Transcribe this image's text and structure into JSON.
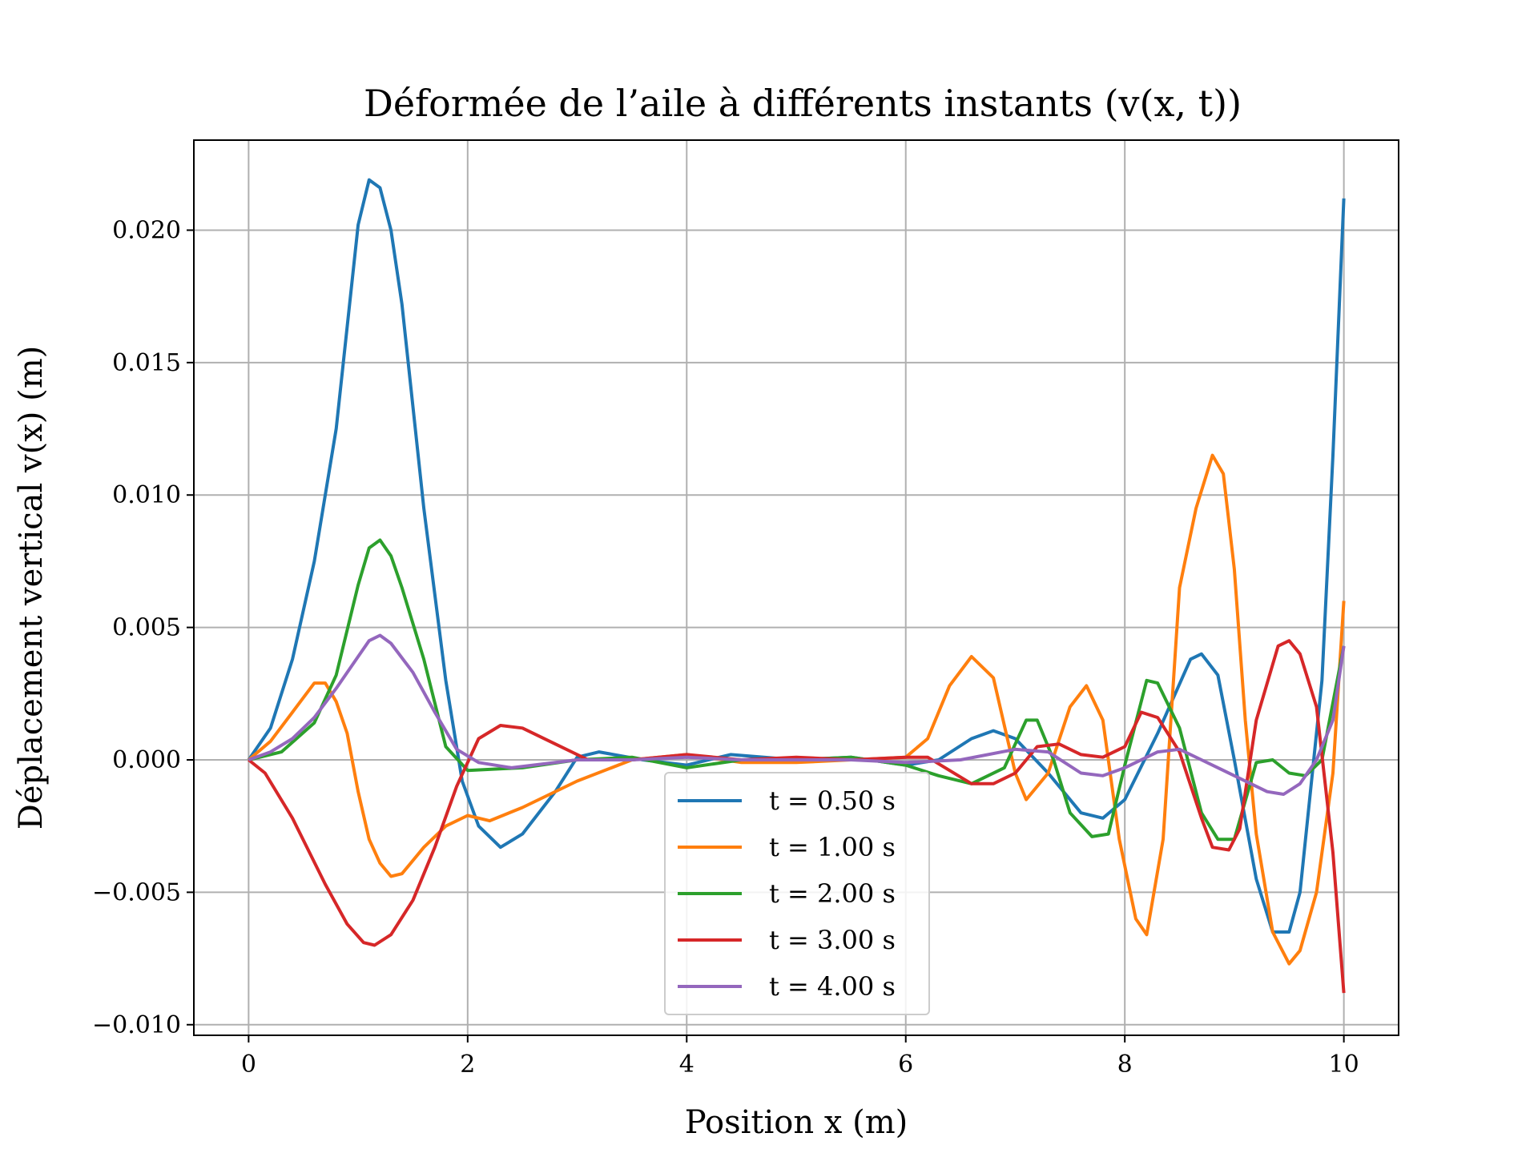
{
  "chart_data": {
    "type": "line",
    "title": "Déformée de l’aile à différents instants (v(x, t))",
    "xlabel": "Position x (m)",
    "ylabel": "Déplacement vertical v(x) (m)",
    "xlim": [
      -0.5,
      10.5
    ],
    "ylim": [
      -0.0104,
      0.0234
    ],
    "xticks": [
      0,
      2,
      4,
      6,
      8,
      10
    ],
    "xtick_labels": [
      "0",
      "2",
      "4",
      "6",
      "8",
      "10"
    ],
    "yticks": [
      -0.01,
      -0.005,
      0.0,
      0.005,
      0.01,
      0.015,
      0.02
    ],
    "ytick_labels": [
      "−0.010",
      "−0.005",
      "0.000",
      "0.005",
      "0.010",
      "0.015",
      "0.020"
    ],
    "grid": true,
    "legend_position": "lower-center",
    "colors": [
      "#1f77b4",
      "#ff7f0e",
      "#2ca02c",
      "#d62728",
      "#9467bd"
    ],
    "series": [
      {
        "name": "t = 0.50 s",
        "points": [
          [
            0,
            0
          ],
          [
            0.2,
            0.0012
          ],
          [
            0.4,
            0.0038
          ],
          [
            0.6,
            0.0075
          ],
          [
            0.8,
            0.0125
          ],
          [
            1.0,
            0.0202
          ],
          [
            1.1,
            0.0219
          ],
          [
            1.2,
            0.0216
          ],
          [
            1.3,
            0.02
          ],
          [
            1.4,
            0.0172
          ],
          [
            1.6,
            0.0095
          ],
          [
            1.8,
            0.003
          ],
          [
            1.95,
            -0.0008
          ],
          [
            2.1,
            -0.0025
          ],
          [
            2.3,
            -0.0033
          ],
          [
            2.5,
            -0.0028
          ],
          [
            2.8,
            -0.0012
          ],
          [
            3.0,
            0.0001
          ],
          [
            3.2,
            0.0003
          ],
          [
            3.6,
            0.0
          ],
          [
            4.0,
            -0.0002
          ],
          [
            4.4,
            0.0002
          ],
          [
            5.0,
            0.0
          ],
          [
            5.5,
            0.0001
          ],
          [
            6.0,
            -0.0002
          ],
          [
            6.3,
            0.0
          ],
          [
            6.6,
            0.0008
          ],
          [
            6.8,
            0.0011
          ],
          [
            7.0,
            0.0008
          ],
          [
            7.3,
            -0.0005
          ],
          [
            7.6,
            -0.002
          ],
          [
            7.8,
            -0.0022
          ],
          [
            8.0,
            -0.0015
          ],
          [
            8.3,
            0.001
          ],
          [
            8.6,
            0.0038
          ],
          [
            8.7,
            0.004
          ],
          [
            8.85,
            0.0032
          ],
          [
            9.0,
            0.0
          ],
          [
            9.2,
            -0.0045
          ],
          [
            9.35,
            -0.0065
          ],
          [
            9.5,
            -0.0065
          ],
          [
            9.6,
            -0.005
          ],
          [
            9.8,
            0.003
          ],
          [
            9.9,
            0.0115
          ],
          [
            10.0,
            0.0212
          ]
        ]
      },
      {
        "name": "t = 1.00 s",
        "points": [
          [
            0,
            0
          ],
          [
            0.2,
            0.0007
          ],
          [
            0.4,
            0.0018
          ],
          [
            0.6,
            0.0029
          ],
          [
            0.7,
            0.0029
          ],
          [
            0.8,
            0.0022
          ],
          [
            0.9,
            0.001
          ],
          [
            1.0,
            -0.0012
          ],
          [
            1.1,
            -0.003
          ],
          [
            1.2,
            -0.0039
          ],
          [
            1.3,
            -0.0044
          ],
          [
            1.4,
            -0.0043
          ],
          [
            1.6,
            -0.0033
          ],
          [
            1.8,
            -0.0025
          ],
          [
            2.0,
            -0.0021
          ],
          [
            2.2,
            -0.0023
          ],
          [
            2.5,
            -0.0018
          ],
          [
            3.0,
            -0.0008
          ],
          [
            3.5,
            0.0
          ],
          [
            4.0,
            0.0002
          ],
          [
            4.5,
            -0.0001
          ],
          [
            5.0,
            -0.0001
          ],
          [
            5.5,
            0.0
          ],
          [
            6.0,
            0.0001
          ],
          [
            6.2,
            0.0008
          ],
          [
            6.4,
            0.0028
          ],
          [
            6.6,
            0.0039
          ],
          [
            6.8,
            0.0031
          ],
          [
            7.0,
            -0.0005
          ],
          [
            7.1,
            -0.0015
          ],
          [
            7.3,
            -0.0005
          ],
          [
            7.5,
            0.002
          ],
          [
            7.65,
            0.0028
          ],
          [
            7.8,
            0.0015
          ],
          [
            7.95,
            -0.003
          ],
          [
            8.1,
            -0.006
          ],
          [
            8.2,
            -0.0066
          ],
          [
            8.35,
            -0.003
          ],
          [
            8.5,
            0.0065
          ],
          [
            8.65,
            0.0095
          ],
          [
            8.8,
            0.0115
          ],
          [
            8.9,
            0.0108
          ],
          [
            9.0,
            0.0072
          ],
          [
            9.1,
            0.0015
          ],
          [
            9.2,
            -0.0028
          ],
          [
            9.35,
            -0.0065
          ],
          [
            9.5,
            -0.0077
          ],
          [
            9.6,
            -0.0072
          ],
          [
            9.75,
            -0.005
          ],
          [
            9.9,
            -0.0005
          ],
          [
            10.0,
            0.006
          ]
        ]
      },
      {
        "name": "t = 2.00 s",
        "points": [
          [
            0,
            0
          ],
          [
            0.3,
            0.0003
          ],
          [
            0.6,
            0.0014
          ],
          [
            0.8,
            0.0032
          ],
          [
            1.0,
            0.0066
          ],
          [
            1.1,
            0.008
          ],
          [
            1.2,
            0.0083
          ],
          [
            1.3,
            0.0077
          ],
          [
            1.4,
            0.0065
          ],
          [
            1.6,
            0.0038
          ],
          [
            1.8,
            0.0005
          ],
          [
            2.0,
            -0.0004
          ],
          [
            2.5,
            -0.0003
          ],
          [
            3.0,
            0.0
          ],
          [
            3.5,
            0.0001
          ],
          [
            4.0,
            -0.0003
          ],
          [
            4.5,
            0.0
          ],
          [
            5.0,
            0.0
          ],
          [
            5.5,
            0.0001
          ],
          [
            6.0,
            -0.0002
          ],
          [
            6.3,
            -0.0006
          ],
          [
            6.6,
            -0.0009
          ],
          [
            6.9,
            -0.0003
          ],
          [
            7.1,
            0.0015
          ],
          [
            7.2,
            0.0015
          ],
          [
            7.35,
            0.0
          ],
          [
            7.5,
            -0.002
          ],
          [
            7.7,
            -0.0029
          ],
          [
            7.85,
            -0.0028
          ],
          [
            8.0,
            -0.0002
          ],
          [
            8.2,
            0.003
          ],
          [
            8.3,
            0.0029
          ],
          [
            8.5,
            0.0012
          ],
          [
            8.7,
            -0.002
          ],
          [
            8.85,
            -0.003
          ],
          [
            9.0,
            -0.003
          ],
          [
            9.2,
            -0.0001
          ],
          [
            9.35,
            0.0
          ],
          [
            9.5,
            -0.0005
          ],
          [
            9.65,
            -0.0006
          ],
          [
            9.8,
            0.0
          ],
          [
            10.0,
            0.0043
          ]
        ]
      },
      {
        "name": "t = 3.00 s",
        "points": [
          [
            0,
            0
          ],
          [
            0.15,
            -0.0005
          ],
          [
            0.4,
            -0.0022
          ],
          [
            0.7,
            -0.0047
          ],
          [
            0.9,
            -0.0062
          ],
          [
            1.05,
            -0.0069
          ],
          [
            1.15,
            -0.007
          ],
          [
            1.3,
            -0.0066
          ],
          [
            1.5,
            -0.0053
          ],
          [
            1.7,
            -0.0033
          ],
          [
            1.9,
            -0.001
          ],
          [
            2.1,
            0.0008
          ],
          [
            2.3,
            0.0013
          ],
          [
            2.5,
            0.0012
          ],
          [
            2.8,
            0.0006
          ],
          [
            3.1,
            0.0
          ],
          [
            3.5,
            0.0
          ],
          [
            4.0,
            0.0002
          ],
          [
            4.5,
            0.0
          ],
          [
            5.0,
            0.0001
          ],
          [
            5.5,
            0.0
          ],
          [
            6.0,
            0.0001
          ],
          [
            6.2,
            0.0001
          ],
          [
            6.4,
            -0.0004
          ],
          [
            6.6,
            -0.0009
          ],
          [
            6.8,
            -0.0009
          ],
          [
            7.0,
            -0.0005
          ],
          [
            7.2,
            0.0005
          ],
          [
            7.4,
            0.0006
          ],
          [
            7.6,
            0.0002
          ],
          [
            7.8,
            0.0001
          ],
          [
            8.0,
            0.0005
          ],
          [
            8.15,
            0.0018
          ],
          [
            8.3,
            0.0016
          ],
          [
            8.5,
            0.0003
          ],
          [
            8.7,
            -0.0022
          ],
          [
            8.8,
            -0.0033
          ],
          [
            8.95,
            -0.0034
          ],
          [
            9.05,
            -0.0026
          ],
          [
            9.2,
            0.0015
          ],
          [
            9.4,
            0.0043
          ],
          [
            9.5,
            0.0045
          ],
          [
            9.6,
            0.004
          ],
          [
            9.75,
            0.002
          ],
          [
            9.9,
            -0.0035
          ],
          [
            10.0,
            -0.0088
          ]
        ]
      },
      {
        "name": "t = 4.00 s",
        "points": [
          [
            0,
            0
          ],
          [
            0.2,
            0.0003
          ],
          [
            0.4,
            0.0008
          ],
          [
            0.6,
            0.0016
          ],
          [
            0.8,
            0.0027
          ],
          [
            1.0,
            0.0039
          ],
          [
            1.1,
            0.0045
          ],
          [
            1.2,
            0.0047
          ],
          [
            1.3,
            0.0044
          ],
          [
            1.5,
            0.0033
          ],
          [
            1.7,
            0.0018
          ],
          [
            1.9,
            0.0004
          ],
          [
            2.1,
            -0.0001
          ],
          [
            2.4,
            -0.0003
          ],
          [
            3.0,
            0.0
          ],
          [
            3.5,
            0.0
          ],
          [
            4.0,
            0.0001
          ],
          [
            4.5,
            0.0
          ],
          [
            5.0,
            0.0
          ],
          [
            5.5,
            0.0
          ],
          [
            6.0,
            -0.0001
          ],
          [
            6.5,
            0.0
          ],
          [
            7.0,
            0.0004
          ],
          [
            7.3,
            0.0003
          ],
          [
            7.6,
            -0.0005
          ],
          [
            7.8,
            -0.0006
          ],
          [
            8.0,
            -0.0003
          ],
          [
            8.3,
            0.0003
          ],
          [
            8.5,
            0.0004
          ],
          [
            8.7,
            0.0
          ],
          [
            9.0,
            -0.0006
          ],
          [
            9.3,
            -0.0012
          ],
          [
            9.45,
            -0.0013
          ],
          [
            9.6,
            -0.0009
          ],
          [
            9.75,
            0.0
          ],
          [
            9.9,
            0.0015
          ],
          [
            10.0,
            0.0043
          ]
        ]
      }
    ]
  }
}
